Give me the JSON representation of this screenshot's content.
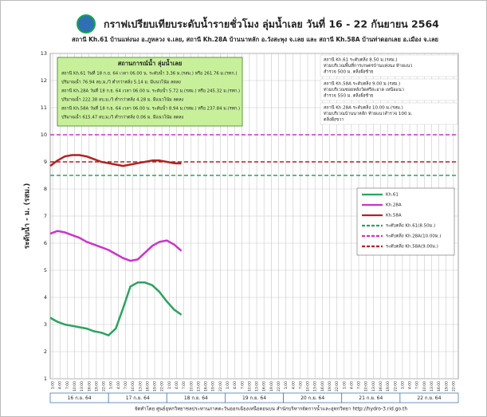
{
  "chart_data": {
    "type": "line",
    "title": "กราฟเปรียบเทียบระดับน้ำรายชั่วโมง ลุ่มน้ำเลย วันที่ 16 - 22 กันยายน 2564",
    "subtitle": "สถานี Kh.61 บ้านแห่งนง อ.ภูหลวง จ.เลย, สถานี Kh.28A บ้านนาหลัก อ.วังสะพุง จ.เลย และ สถานี Kh.58A บ้านท่าดอกเลย อ.เมือง จ.เลย",
    "y_label": "ระดับน้ำ - ม. (รสม.)",
    "ylim": [
      1,
      13
    ],
    "yticks": [
      1,
      2,
      3,
      4,
      5,
      6,
      7,
      8,
      9,
      10,
      11,
      12,
      13
    ],
    "xlim": [
      0,
      168
    ],
    "xticks": [
      {
        "value": 1,
        "label": "1:00"
      },
      {
        "value": 4,
        "label": "4:00"
      },
      {
        "value": 7,
        "label": "7:00"
      },
      {
        "value": 10,
        "label": "10:00"
      },
      {
        "value": 13,
        "label": "13:00"
      },
      {
        "value": 16,
        "label": "16:00"
      },
      {
        "value": 19,
        "label": "19:00"
      },
      {
        "value": 22,
        "label": "22:00"
      },
      {
        "value": 25,
        "label": "1:00"
      },
      {
        "value": 28,
        "label": "4:00"
      },
      {
        "value": 31,
        "label": "7:00"
      },
      {
        "value": 34,
        "label": "10:00"
      },
      {
        "value": 37,
        "label": "13:00"
      },
      {
        "value": 40,
        "label": "16:00"
      },
      {
        "value": 43,
        "label": "19:00"
      },
      {
        "value": 46,
        "label": "22:00"
      },
      {
        "value": 49,
        "label": "1:00"
      },
      {
        "value": 52,
        "label": "4:00"
      },
      {
        "value": 55,
        "label": "7:00"
      },
      {
        "value": 58,
        "label": "10:00"
      },
      {
        "value": 61,
        "label": "13:00"
      },
      {
        "value": 64,
        "label": "16:00"
      },
      {
        "value": 67,
        "label": "19:00"
      },
      {
        "value": 70,
        "label": "22:00"
      },
      {
        "value": 73,
        "label": "1:00"
      },
      {
        "value": 76,
        "label": "4:00"
      },
      {
        "value": 79,
        "label": "7:00"
      },
      {
        "value": 82,
        "label": "10:00"
      },
      {
        "value": 85,
        "label": "13:00"
      },
      {
        "value": 88,
        "label": "16:00"
      },
      {
        "value": 91,
        "label": "19:00"
      },
      {
        "value": 94,
        "label": "22:00"
      },
      {
        "value": 97,
        "label": "1:00"
      },
      {
        "value": 100,
        "label": "4:00"
      },
      {
        "value": 103,
        "label": "7:00"
      },
      {
        "value": 106,
        "label": "10:00"
      },
      {
        "value": 109,
        "label": "13:00"
      },
      {
        "value": 112,
        "label": "16:00"
      },
      {
        "value": 115,
        "label": "19:00"
      },
      {
        "value": 118,
        "label": "22:00"
      },
      {
        "value": 121,
        "label": "1:00"
      },
      {
        "value": 124,
        "label": "4:00"
      },
      {
        "value": 127,
        "label": "7:00"
      },
      {
        "value": 130,
        "label": "10:00"
      },
      {
        "value": 133,
        "label": "13:00"
      },
      {
        "value": 136,
        "label": "16:00"
      },
      {
        "value": 139,
        "label": "19:00"
      },
      {
        "value": 142,
        "label": "22:00"
      },
      {
        "value": 145,
        "label": "1:00"
      },
      {
        "value": 148,
        "label": "4:00"
      },
      {
        "value": 151,
        "label": "7:00"
      },
      {
        "value": 154,
        "label": "10:00"
      },
      {
        "value": 157,
        "label": "13:00"
      },
      {
        "value": 160,
        "label": "16:00"
      },
      {
        "value": 163,
        "label": "19:00"
      },
      {
        "value": 166,
        "label": "22:00"
      }
    ],
    "days": [
      "16 ก.ย. 64",
      "17 ก.ย. 64",
      "18 ก.ย. 64",
      "19 ก.ย. 64",
      "20 ก.ย. 64",
      "21 ก.ย. 64",
      "22 ก.ย. 64"
    ],
    "grid": true,
    "x": [
      0,
      3,
      6,
      9,
      12,
      15,
      18,
      21,
      24,
      27,
      30,
      33,
      36,
      39,
      42,
      45,
      48,
      51,
      54
    ],
    "series": [
      {
        "name": "Kh.61",
        "color": "#2ca25f",
        "values": [
          3.25,
          3.1,
          3.0,
          2.95,
          2.9,
          2.85,
          2.75,
          2.7,
          2.6,
          2.85,
          3.6,
          4.4,
          4.55,
          4.55,
          4.45,
          4.2,
          3.85,
          3.55,
          3.36
        ]
      },
      {
        "name": "Kh.28A",
        "color": "#cc33cc",
        "values": [
          6.35,
          6.45,
          6.4,
          6.3,
          6.2,
          6.05,
          5.95,
          5.85,
          5.75,
          5.6,
          5.45,
          5.35,
          5.4,
          5.65,
          5.9,
          6.05,
          6.1,
          5.95,
          5.72
        ]
      },
      {
        "name": "Kh.58A",
        "color": "#b22222",
        "values": [
          8.85,
          9.05,
          9.2,
          9.25,
          9.25,
          9.2,
          9.1,
          9.0,
          8.95,
          8.9,
          8.85,
          8.9,
          8.95,
          9.0,
          9.05,
          9.05,
          9.0,
          8.95,
          8.94
        ]
      }
    ],
    "reference_lines": [
      {
        "name": "ระดับตลิ่ง Kh.61(8.50ม.)",
        "value": 8.5,
        "color": "#2ca25f"
      },
      {
        "name": "ระดับตลิ่ง Kh.28A(10.00ม.)",
        "value": 10,
        "color": "#cc33cc"
      },
      {
        "name": "ระดับตลิ่ง Kh.58A(9.00ม.)",
        "value": 9,
        "color": "#b22222"
      }
    ],
    "situation_box": {
      "title": "สถานการณ์น้ำ ลุ่มน้ำเลย",
      "lines": [
        "สถานี Kh.61 วันที่ 18 ก.ย. 64 เวลา 06.00 น. ระดับน้ำ 3.36 ม.(รสม.) หรือ 261.76 ม.(รทก.)",
        "ปริมาณน้ำ 76.94 ลบ.ม./วิ ต่ำกว่าตลิ่ง 5.14 ม. มีแนวโน้ม ลดลง",
        "สถานี Kh.28A วันที่ 18 ก.ย. 64 เวลา 06.00 น. ระดับน้ำ 5.72 ม.(รสม.) หรือ 245.32 ม.(รทก.)",
        "ปริมาณน้ำ 222.38 ลบ.ม./วิ ต่ำกว่าตลิ่ง 4.28 ม. มีแนวโน้ม ลดลง",
        "สถานี Kh.58A วันที่ 18 ก.ย. 64 เวลา 06.00 น. ระดับน้ำ 8.94 ม.(รสม.) หรือ 237.84 ม.(รทก.)",
        "ปริมาณน้ำ 615.47 ลบ.ม./วิ ต่ำกว่าตลิ่ง 0.06 ม. มีแนวโน้ม ลดลง"
      ]
    },
    "bank_notes": [
      {
        "color": "#2ca25f",
        "lines": [
          "สถานี Kh.61 ระดับตลิ่ง 8.50 ม.(รสม.)",
          "ท่วมบริเวณพื้นที่การเกษตรบ้านแห่งนง ท้ายแนว",
          "สำรวจ 500 ม. ตลิ่งฝั่งซ้าย"
        ]
      },
      {
        "color": "#b22222",
        "lines": [
          "สถานี Kh.58A ระดับตลิ่ง 9.00 ม.(รสม.)",
          "ท่วมบริเวณซอยหลังวัดศรีสะอาด เหนือแนว",
          "สำรวจ 550 ม. ตลิ่งฝั่งซ้าย"
        ]
      },
      {
        "color": "#cc33cc",
        "lines": [
          "สถานี Kh.28A ระดับตลิ่ง 10.00 ม.(รสม.)",
          "ท่วมบริเวณบ้านนาหลัก ท้ายแนวสำรวจ 100 ม.",
          "ตลิ่งฝั่งขวา"
        ]
      }
    ],
    "footer": "จัดทำโดย ศูนย์อุทกวิทยาชลประทานภาคตะวันออกเฉียงเหนือตอนบน สำนักบริหารจัดการน้ำและอุทกวิทยา   http://hydro-3.rid.go.th"
  }
}
